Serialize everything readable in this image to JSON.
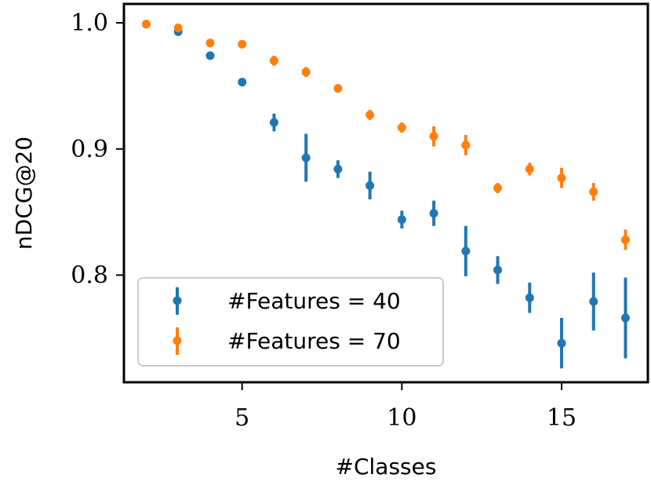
{
  "chart_data": {
    "type": "scatter",
    "title": "",
    "xlabel": "#Classes",
    "ylabel": "nDCG@20",
    "xlim": [
      1.3,
      17.7
    ],
    "ylim": [
      0.715,
      1.015
    ],
    "xticks": [
      5,
      10,
      15
    ],
    "xtick_labels": [
      "5",
      "10",
      "15"
    ],
    "yticks": [
      0.8,
      0.9,
      1.0
    ],
    "ytick_labels": [
      "0.8",
      "0.9",
      "1.0"
    ],
    "legend_position": "lower-left",
    "grid": false,
    "colors": {
      "series_40": "#1f77b4",
      "series_70": "#ff7f0e",
      "legend_border": "#cccccc"
    },
    "series": [
      {
        "name": "#Features = 40",
        "legend_label": "#Features = 40",
        "color": "#1f77b4",
        "points": [
          {
            "x": 2,
            "y": 0.999,
            "err": 0.0
          },
          {
            "x": 3,
            "y": 0.993,
            "err": 0.002
          },
          {
            "x": 4,
            "y": 0.974,
            "err": 0.001
          },
          {
            "x": 5,
            "y": 0.953,
            "err": 0.001
          },
          {
            "x": 6,
            "y": 0.921,
            "err": 0.007
          },
          {
            "x": 7,
            "y": 0.893,
            "err": 0.019
          },
          {
            "x": 8,
            "y": 0.884,
            "err": 0.007
          },
          {
            "x": 9,
            "y": 0.871,
            "err": 0.011
          },
          {
            "x": 10,
            "y": 0.844,
            "err": 0.007
          },
          {
            "x": 11,
            "y": 0.849,
            "err": 0.01
          },
          {
            "x": 12,
            "y": 0.819,
            "err": 0.02
          },
          {
            "x": 13,
            "y": 0.804,
            "err": 0.011
          },
          {
            "x": 14,
            "y": 0.782,
            "err": 0.012
          },
          {
            "x": 15,
            "y": 0.746,
            "err": 0.02
          },
          {
            "x": 16,
            "y": 0.779,
            "err": 0.023
          },
          {
            "x": 17,
            "y": 0.766,
            "err": 0.032
          }
        ]
      },
      {
        "name": "#Features = 70",
        "legend_label": "#Features = 70",
        "color": "#ff7f0e",
        "points": [
          {
            "x": 2,
            "y": 0.999,
            "err": 0.0
          },
          {
            "x": 3,
            "y": 0.996,
            "err": 0.002
          },
          {
            "x": 4,
            "y": 0.984,
            "err": 0.003
          },
          {
            "x": 5,
            "y": 0.983,
            "err": 0.001
          },
          {
            "x": 6,
            "y": 0.97,
            "err": 0.004
          },
          {
            "x": 7,
            "y": 0.961,
            "err": 0.004
          },
          {
            "x": 8,
            "y": 0.948,
            "err": 0.002
          },
          {
            "x": 9,
            "y": 0.927,
            "err": 0.004
          },
          {
            "x": 10,
            "y": 0.917,
            "err": 0.004
          },
          {
            "x": 11,
            "y": 0.91,
            "err": 0.008
          },
          {
            "x": 12,
            "y": 0.903,
            "err": 0.008
          },
          {
            "x": 13,
            "y": 0.869,
            "err": 0.004
          },
          {
            "x": 14,
            "y": 0.884,
            "err": 0.005
          },
          {
            "x": 15,
            "y": 0.877,
            "err": 0.008
          },
          {
            "x": 16,
            "y": 0.866,
            "err": 0.007
          },
          {
            "x": 17,
            "y": 0.828,
            "err": 0.008
          }
        ]
      }
    ]
  }
}
